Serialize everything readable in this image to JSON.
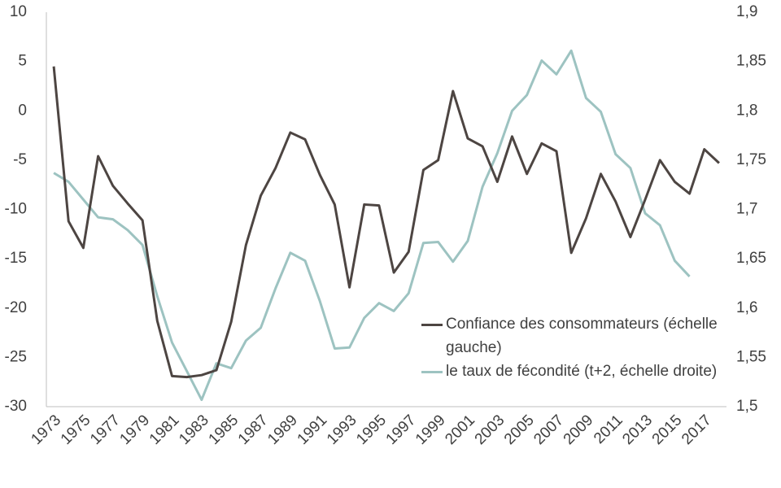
{
  "chart_data": {
    "type": "line",
    "x": [
      1973,
      1974,
      1975,
      1976,
      1977,
      1978,
      1979,
      1980,
      1981,
      1982,
      1983,
      1984,
      1985,
      1986,
      1987,
      1988,
      1989,
      1990,
      1991,
      1992,
      1993,
      1994,
      1995,
      1996,
      1997,
      1998,
      1999,
      2000,
      2001,
      2002,
      2003,
      2004,
      2005,
      2006,
      2007,
      2008,
      2009,
      2010,
      2011,
      2012,
      2013,
      2014,
      2015,
      2016,
      2017,
      2018
    ],
    "xlim": [
      1972.5,
      2018.5
    ],
    "xticks": [
      1973,
      1975,
      1977,
      1979,
      1981,
      1983,
      1985,
      1987,
      1989,
      1991,
      1993,
      1995,
      1997,
      1999,
      2001,
      2003,
      2005,
      2007,
      2009,
      2011,
      2013,
      2015,
      2017
    ],
    "ylim": [
      -30,
      10
    ],
    "yticks": [
      -30,
      -25,
      -20,
      -15,
      -10,
      -5,
      0,
      5,
      10
    ],
    "y2lim": [
      1.5,
      1.9
    ],
    "y2ticks": [
      {
        "value": 1.5,
        "label": "1,5"
      },
      {
        "value": 1.55,
        "label": "1,55"
      },
      {
        "value": 1.6,
        "label": "1,6"
      },
      {
        "value": 1.65,
        "label": "1,65"
      },
      {
        "value": 1.7,
        "label": "1,7"
      },
      {
        "value": 1.75,
        "label": "1,75"
      },
      {
        "value": 1.8,
        "label": "1,8"
      },
      {
        "value": 1.85,
        "label": "1,85"
      },
      {
        "value": 1.9,
        "label": "1,9"
      }
    ],
    "grid": false,
    "series": [
      {
        "name": "Confiance des consommateurs (échelle gauche)",
        "color": "#4d4542",
        "axis": "y",
        "values": [
          4.5,
          -11.2,
          -13.9,
          -4.6,
          -7.6,
          -9.4,
          -11.1,
          -21.3,
          -26.9,
          -27,
          -26.8,
          -26.3,
          -21.4,
          -13.6,
          -8.6,
          -5.8,
          -2.2,
          -2.9,
          -6.5,
          -9.5,
          -17.9,
          -9.5,
          -9.6,
          -16.4,
          -14.3,
          -6,
          -5,
          2,
          -2.8,
          -3.6,
          -7.2,
          -2.6,
          -6.4,
          -3.3,
          -4.1,
          -14.4,
          -10.9,
          -6.4,
          -9.2,
          -12.8,
          -9,
          -5,
          -7.2,
          -8.4,
          -3.9,
          -5.3
        ]
      },
      {
        "name": "le taux de fécondité (t+2, échelle droite)",
        "color": "#9dc3c1",
        "axis": "y2",
        "values": [
          1.737,
          1.728,
          1.71,
          1.692,
          1.69,
          1.679,
          1.664,
          1.612,
          1.565,
          1.536,
          1.507,
          1.544,
          1.539,
          1.567,
          1.58,
          1.62,
          1.656,
          1.648,
          1.607,
          1.559,
          1.56,
          1.59,
          1.605,
          1.597,
          1.615,
          1.666,
          1.667,
          1.647,
          1.668,
          1.723,
          1.757,
          1.8,
          1.816,
          1.851,
          1.837,
          1.861,
          1.813,
          1.799,
          1.756,
          1.742,
          1.696,
          1.684,
          1.648,
          1.632,
          null,
          null
        ]
      }
    ]
  }
}
